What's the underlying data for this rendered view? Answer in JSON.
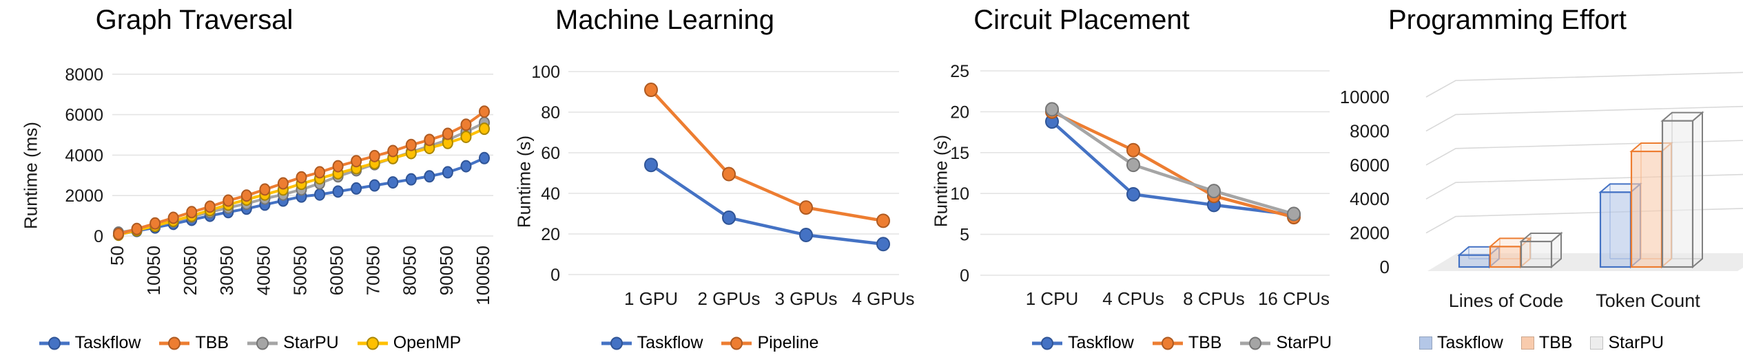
{
  "page": {
    "background": "#ffffff"
  },
  "charts": [
    {
      "title": "Graph Traversal",
      "ylabel": "Runtime (ms)",
      "chart_data": {
        "type": "line",
        "x": [
          50,
          5050,
          10050,
          15050,
          20050,
          25050,
          30050,
          35050,
          40050,
          45050,
          50050,
          55050,
          60050,
          65050,
          70050,
          75050,
          80050,
          85050,
          90050,
          95050,
          100050
        ],
        "x_tick_labels": [
          "50",
          "10050",
          "20050",
          "30050",
          "40050",
          "50050",
          "60050",
          "70050",
          "80050",
          "90050",
          "100050"
        ],
        "y_ticks": [
          0,
          2000,
          4000,
          6000,
          8000
        ],
        "ylim": [
          0,
          8000
        ],
        "grid": "horizontal",
        "legend_position": "bottom",
        "series": [
          {
            "name": "Taskflow",
            "color": "#4472C4",
            "edge": "#2F5496",
            "values": [
              80,
              250,
              420,
              600,
              800,
              1000,
              1180,
              1350,
              1550,
              1750,
              1950,
              2050,
              2200,
              2350,
              2500,
              2650,
              2800,
              2950,
              3150,
              3450,
              3850
            ]
          },
          {
            "name": "TBB",
            "color": "#ED7D31",
            "edge": "#AE5A21",
            "values": [
              100,
              350,
              620,
              900,
              1180,
              1450,
              1750,
              2000,
              2300,
              2600,
              2900,
              3150,
              3450,
              3700,
              3950,
              4200,
              4500,
              4750,
              5050,
              5500,
              6150
            ]
          },
          {
            "name": "StarPU",
            "color": "#A5A5A5",
            "edge": "#757575",
            "values": [
              170,
              320,
              520,
              720,
              950,
              1180,
              1400,
              1600,
              1850,
              2050,
              2300,
              2600,
              2950,
              3250,
              3550,
              3850,
              4150,
              4450,
              4750,
              5150,
              5600
            ]
          },
          {
            "name": "OpenMP",
            "color": "#FFC000",
            "edge": "#A98600",
            "values": [
              60,
              280,
              500,
              750,
              1000,
              1280,
              1550,
              1800,
              2050,
              2300,
              2580,
              2850,
              3100,
              3350,
              3600,
              3850,
              4100,
              4350,
              4600,
              4900,
              5300
            ]
          }
        ]
      }
    },
    {
      "title": "Machine Learning",
      "ylabel": "Runtime (s)",
      "chart_data": {
        "type": "line",
        "categories": [
          "1 GPU",
          "2 GPUs",
          "3 GPUs",
          "4 GPUs"
        ],
        "y_ticks": [
          0,
          20,
          40,
          60,
          80,
          100
        ],
        "ylim": [
          0,
          100
        ],
        "grid": "horizontal",
        "legend_position": "bottom",
        "series": [
          {
            "name": "Taskflow",
            "color": "#4472C4",
            "edge": "#2F5496",
            "values": [
              54,
              28,
              19.5,
              15
            ]
          },
          {
            "name": "Pipeline",
            "color": "#ED7D31",
            "edge": "#AE5A21",
            "values": [
              91,
              49.5,
              33,
              26.5
            ]
          }
        ]
      }
    },
    {
      "title": "Circuit Placement",
      "ylabel": "Runtime (s)",
      "chart_data": {
        "type": "line",
        "categories": [
          "1 CPU",
          "4 CPUs",
          "8 CPUs",
          "16 CPUs"
        ],
        "y_ticks": [
          0,
          5,
          10,
          15,
          20,
          25
        ],
        "ylim": [
          0,
          25
        ],
        "grid": "horizontal",
        "legend_position": "bottom",
        "series": [
          {
            "name": "Taskflow",
            "color": "#4472C4",
            "edge": "#2F5496",
            "values": [
              18.8,
              9.9,
              8.6,
              7.4
            ]
          },
          {
            "name": "TBB",
            "color": "#ED7D31",
            "edge": "#AE5A21",
            "values": [
              20,
              15.3,
              9.7,
              7.1
            ]
          },
          {
            "name": "StarPU",
            "color": "#A5A5A5",
            "edge": "#757575",
            "values": [
              20.3,
              13.5,
              10.3,
              7.5
            ]
          }
        ]
      }
    },
    {
      "title": "Programming Effort",
      "ylabel": "",
      "chart_data": {
        "type": "bar3d",
        "categories": [
          "Lines of Code",
          "Token Count"
        ],
        "y_ticks": [
          0,
          2000,
          4000,
          6000,
          8000,
          10000
        ],
        "ylim": [
          0,
          10000
        ],
        "grid": "horizontal",
        "legend_position": "bottom",
        "series": [
          {
            "name": "Taskflow",
            "fill": "#B4C7E7",
            "edge": "#4472C4",
            "values": [
              700,
              4400
            ]
          },
          {
            "name": "TBB",
            "fill": "#F8CBAD",
            "edge": "#ED7D31",
            "values": [
              1200,
              6800
            ]
          },
          {
            "name": "StarPU",
            "fill": "#EDEDED",
            "edge": "#808080",
            "values": [
              1500,
              8600
            ]
          }
        ]
      }
    }
  ]
}
